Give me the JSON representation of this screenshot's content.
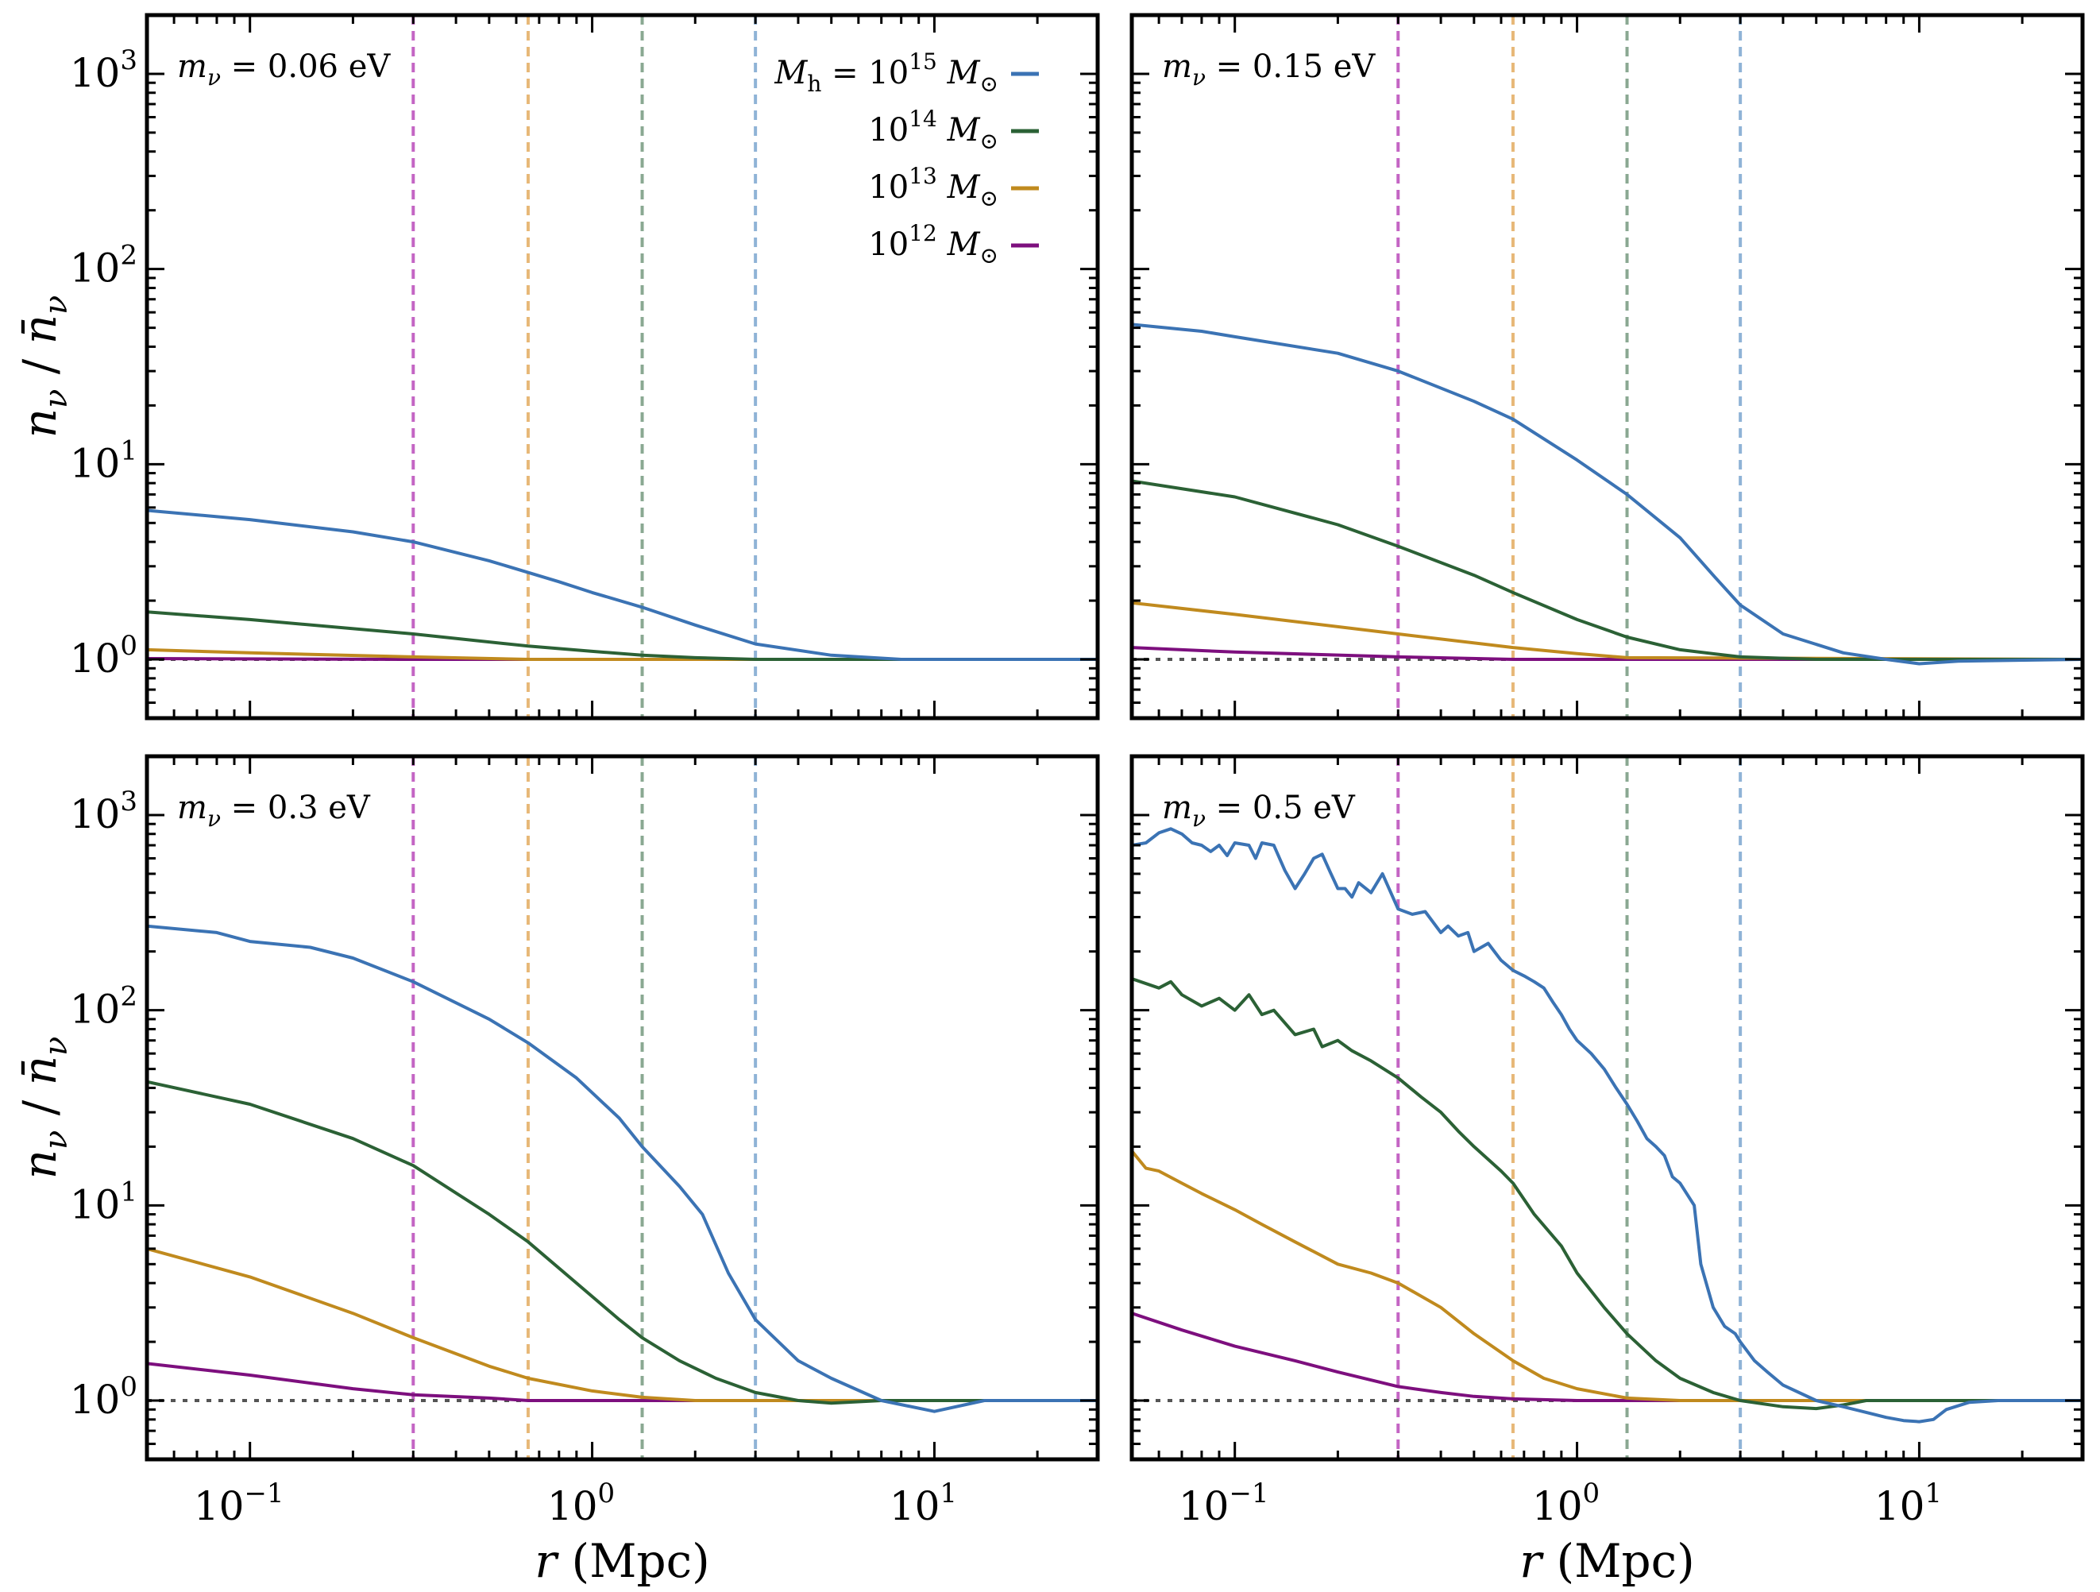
{
  "figure": {
    "ylabel": "n_ν / n̄_ν",
    "xlabel": "r (Mpc)"
  },
  "colors": {
    "m1e15": "#3b73b4",
    "m1e14": "#2b6135",
    "m1e13": "#c08a1e",
    "m1e12": "#7d0f7e",
    "vline_m1e15": "#8fb3d6",
    "vline_m1e14": "#8aa892",
    "vline_m1e13": "#e7b878",
    "vline_m1e12": "#c465c4",
    "reference": "#555555"
  },
  "legend": {
    "title": "M_h = ",
    "entries": [
      {
        "label": "10^15 M_⊙",
        "mantissa": "10",
        "exp": "15",
        "unit": "M",
        "sub": "⊙",
        "series": "m1e15"
      },
      {
        "label": "10^14 M_⊙",
        "mantissa": "10",
        "exp": "14",
        "unit": "M",
        "sub": "⊙",
        "series": "m1e14"
      },
      {
        "label": "10^13 M_⊙",
        "mantissa": "10",
        "exp": "13",
        "unit": "M",
        "sub": "⊙",
        "series": "m1e13"
      },
      {
        "label": "10^12 M_⊙",
        "mantissa": "10",
        "exp": "12",
        "unit": "M",
        "sub": "⊙",
        "series": "m1e12"
      }
    ]
  },
  "chart_data": [
    {
      "type": "line",
      "panel": "top-left",
      "label": "m_ν = 0.06 eV",
      "label_value": "0.06 eV",
      "xscale": "log",
      "yscale": "log",
      "xlim": [
        0.05,
        30
      ],
      "ylim": [
        0.5,
        2000
      ],
      "xticks": [
        "10^-1",
        "10^0",
        "10^1"
      ],
      "yticks": [
        "10^0",
        "10^1",
        "10^2",
        "10^3"
      ],
      "reference_line_y": 1,
      "vlines": [
        {
          "x": 0.3,
          "series": "m1e12"
        },
        {
          "x": 0.65,
          "series": "m1e13"
        },
        {
          "x": 1.4,
          "series": "m1e14"
        },
        {
          "x": 3.0,
          "series": "m1e15"
        }
      ],
      "series": [
        {
          "name": "m1e15",
          "x": [
            0.05,
            0.1,
            0.2,
            0.3,
            0.5,
            0.8,
            1.0,
            1.4,
            2,
            3,
            5,
            8,
            30
          ],
          "y": [
            5.8,
            5.2,
            4.5,
            4.0,
            3.2,
            2.5,
            2.2,
            1.85,
            1.5,
            1.2,
            1.05,
            1.0,
            1.0
          ]
        },
        {
          "name": "m1e14",
          "x": [
            0.05,
            0.1,
            0.3,
            0.65,
            1.0,
            1.4,
            2,
            3,
            30
          ],
          "y": [
            1.75,
            1.6,
            1.35,
            1.17,
            1.1,
            1.05,
            1.02,
            1.0,
            1.0
          ]
        },
        {
          "name": "m1e13",
          "x": [
            0.05,
            0.1,
            0.3,
            0.65,
            1.0,
            30
          ],
          "y": [
            1.12,
            1.08,
            1.03,
            1.0,
            1.0,
            1.0
          ]
        },
        {
          "name": "m1e12",
          "x": [
            0.05,
            0.3,
            30
          ],
          "y": [
            1.01,
            1.0,
            1.0
          ]
        }
      ]
    },
    {
      "type": "line",
      "panel": "top-right",
      "label": "m_ν = 0.15 eV",
      "label_value": "0.15 eV",
      "xscale": "log",
      "yscale": "log",
      "xlim": [
        0.05,
        30
      ],
      "ylim": [
        0.5,
        2000
      ],
      "xticks": [
        "10^-1",
        "10^0",
        "10^1"
      ],
      "yticks": [
        "10^0",
        "10^1",
        "10^2",
        "10^3"
      ],
      "reference_line_y": 1,
      "vlines": [
        {
          "x": 0.3,
          "series": "m1e12"
        },
        {
          "x": 0.65,
          "series": "m1e13"
        },
        {
          "x": 1.4,
          "series": "m1e14"
        },
        {
          "x": 3.0,
          "series": "m1e15"
        }
      ],
      "series": [
        {
          "name": "m1e15",
          "x": [
            0.05,
            0.08,
            0.1,
            0.2,
            0.3,
            0.5,
            0.65,
            1.0,
            1.4,
            2.0,
            2.5,
            3.0,
            4.0,
            6.0,
            8.0,
            10.0,
            13.0,
            30.0
          ],
          "y": [
            52,
            48,
            45,
            37,
            30,
            21,
            17,
            10.5,
            7,
            4.2,
            2.7,
            1.9,
            1.35,
            1.08,
            1.0,
            0.95,
            0.98,
            1.0
          ]
        },
        {
          "name": "m1e14",
          "x": [
            0.05,
            0.1,
            0.2,
            0.3,
            0.5,
            0.65,
            1.0,
            1.4,
            2.0,
            3.0,
            5.0,
            30.0
          ],
          "y": [
            8.2,
            6.8,
            4.9,
            3.8,
            2.7,
            2.2,
            1.6,
            1.3,
            1.12,
            1.03,
            1.0,
            1.0
          ]
        },
        {
          "name": "m1e13",
          "x": [
            0.05,
            0.1,
            0.3,
            0.65,
            1.0,
            1.4,
            30.0
          ],
          "y": [
            1.95,
            1.7,
            1.35,
            1.15,
            1.07,
            1.02,
            1.0
          ]
        },
        {
          "name": "m1e12",
          "x": [
            0.05,
            0.1,
            0.3,
            0.65,
            30.0
          ],
          "y": [
            1.15,
            1.09,
            1.03,
            1.0,
            1.0
          ]
        }
      ]
    },
    {
      "type": "line",
      "panel": "bottom-left",
      "label": "m_ν = 0.3 eV",
      "label_value": "0.3 eV",
      "xscale": "log",
      "yscale": "log",
      "xlim": [
        0.05,
        30
      ],
      "ylim": [
        0.5,
        2000
      ],
      "xticks": [
        "10^-1",
        "10^0",
        "10^1"
      ],
      "yticks": [
        "10^0",
        "10^1",
        "10^2",
        "10^3"
      ],
      "reference_line_y": 1,
      "vlines": [
        {
          "x": 0.3,
          "series": "m1e12"
        },
        {
          "x": 0.65,
          "series": "m1e13"
        },
        {
          "x": 1.4,
          "series": "m1e14"
        },
        {
          "x": 3.0,
          "series": "m1e15"
        }
      ],
      "series": [
        {
          "name": "m1e15",
          "x": [
            0.05,
            0.08,
            0.1,
            0.15,
            0.2,
            0.3,
            0.5,
            0.65,
            0.9,
            1.2,
            1.4,
            1.8,
            2.1,
            2.5,
            3.0,
            4.0,
            5.0,
            7.0,
            10.0,
            14.0,
            30.0
          ],
          "y": [
            270,
            250,
            225,
            210,
            185,
            140,
            90,
            68,
            45,
            28,
            20,
            12.5,
            9,
            4.5,
            2.6,
            1.6,
            1.3,
            1.0,
            0.88,
            1.0,
            1.0
          ]
        },
        {
          "name": "m1e14",
          "x": [
            0.05,
            0.1,
            0.2,
            0.3,
            0.5,
            0.65,
            0.9,
            1.2,
            1.4,
            1.8,
            2.3,
            3.0,
            4.0,
            5.0,
            7.0,
            30.0
          ],
          "y": [
            43,
            33,
            22,
            16,
            9,
            6.5,
            4.0,
            2.6,
            2.1,
            1.6,
            1.3,
            1.1,
            1.0,
            0.97,
            1.0,
            1.0
          ]
        },
        {
          "name": "m1e13",
          "x": [
            0.05,
            0.1,
            0.2,
            0.3,
            0.5,
            0.65,
            1.0,
            1.4,
            2.0,
            30.0
          ],
          "y": [
            6,
            4.3,
            2.8,
            2.1,
            1.5,
            1.3,
            1.12,
            1.04,
            1.0,
            1.0
          ]
        },
        {
          "name": "m1e12",
          "x": [
            0.05,
            0.1,
            0.2,
            0.3,
            0.5,
            0.65,
            30.0
          ],
          "y": [
            1.55,
            1.35,
            1.15,
            1.07,
            1.03,
            1.0,
            1.0
          ]
        }
      ]
    },
    {
      "type": "line",
      "panel": "bottom-right",
      "label": "m_ν = 0.5 eV",
      "label_value": "0.5 eV",
      "xscale": "log",
      "yscale": "log",
      "xlim": [
        0.05,
        30
      ],
      "ylim": [
        0.5,
        2000
      ],
      "xticks": [
        "10^-1",
        "10^0",
        "10^1"
      ],
      "yticks": [
        "10^0",
        "10^1",
        "10^2",
        "10^3"
      ],
      "reference_line_y": 1,
      "vlines": [
        {
          "x": 0.3,
          "series": "m1e12"
        },
        {
          "x": 0.65,
          "series": "m1e13"
        },
        {
          "x": 1.4,
          "series": "m1e14"
        },
        {
          "x": 3.0,
          "series": "m1e15"
        }
      ],
      "series": [
        {
          "name": "m1e15",
          "x": [
            0.05,
            0.055,
            0.06,
            0.065,
            0.07,
            0.075,
            0.08,
            0.085,
            0.09,
            0.095,
            0.1,
            0.11,
            0.115,
            0.12,
            0.13,
            0.14,
            0.15,
            0.16,
            0.17,
            0.18,
            0.19,
            0.2,
            0.21,
            0.22,
            0.23,
            0.25,
            0.27,
            0.3,
            0.33,
            0.36,
            0.4,
            0.42,
            0.45,
            0.48,
            0.5,
            0.55,
            0.6,
            0.65,
            0.7,
            0.75,
            0.8,
            0.85,
            0.9,
            0.95,
            1.0,
            1.1,
            1.2,
            1.3,
            1.4,
            1.5,
            1.6,
            1.7,
            1.8,
            1.9,
            2.0,
            2.2,
            2.3,
            2.5,
            2.7,
            2.9,
            3.0,
            3.3,
            3.6,
            4.0,
            5.0,
            6.0,
            7.0,
            8.0,
            9.0,
            10.0,
            11.0,
            12.0,
            14.0,
            17.0,
            30.0
          ],
          "y": [
            700,
            720,
            810,
            850,
            800,
            720,
            700,
            650,
            700,
            620,
            720,
            700,
            600,
            720,
            700,
            520,
            420,
            500,
            600,
            630,
            510,
            420,
            420,
            380,
            450,
            400,
            500,
            330,
            310,
            320,
            250,
            270,
            240,
            250,
            200,
            220,
            180,
            160,
            150,
            140,
            130,
            110,
            95,
            80,
            70,
            60,
            50,
            40,
            33,
            27,
            22,
            20,
            18,
            14,
            13,
            10,
            5.0,
            3.0,
            2.4,
            2.2,
            2.0,
            1.6,
            1.4,
            1.2,
            1.0,
            0.93,
            0.87,
            0.82,
            0.79,
            0.78,
            0.8,
            0.9,
            0.98,
            1.0,
            1.0
          ]
        },
        {
          "name": "m1e14",
          "x": [
            0.05,
            0.06,
            0.065,
            0.07,
            0.08,
            0.09,
            0.1,
            0.11,
            0.12,
            0.13,
            0.15,
            0.17,
            0.18,
            0.2,
            0.22,
            0.25,
            0.3,
            0.35,
            0.4,
            0.45,
            0.5,
            0.6,
            0.65,
            0.75,
            0.9,
            1.0,
            1.2,
            1.4,
            1.7,
            2.0,
            2.5,
            3.0,
            4.0,
            5.0,
            6.0,
            7.0,
            30.0
          ],
          "y": [
            145,
            130,
            140,
            120,
            105,
            115,
            100,
            120,
            95,
            100,
            75,
            80,
            65,
            70,
            62,
            55,
            45,
            36,
            30,
            24,
            20,
            15,
            13,
            9,
            6.2,
            4.5,
            3.0,
            2.2,
            1.6,
            1.3,
            1.1,
            1.0,
            0.93,
            0.91,
            0.95,
            1.0,
            1.0
          ]
        },
        {
          "name": "m1e13",
          "x": [
            0.05,
            0.055,
            0.06,
            0.07,
            0.08,
            0.1,
            0.12,
            0.15,
            0.2,
            0.25,
            0.3,
            0.4,
            0.5,
            0.65,
            0.8,
            1.0,
            1.4,
            2.0,
            3.0,
            30.0
          ],
          "y": [
            19,
            15.5,
            15,
            13,
            11.5,
            9.5,
            8,
            6.5,
            5.0,
            4.5,
            4.0,
            3.0,
            2.2,
            1.6,
            1.3,
            1.15,
            1.03,
            1.0,
            1.0,
            1.0
          ]
        },
        {
          "name": "m1e12",
          "x": [
            0.05,
            0.07,
            0.1,
            0.15,
            0.2,
            0.3,
            0.4,
            0.5,
            0.65,
            1.0,
            30.0
          ],
          "y": [
            2.8,
            2.3,
            1.9,
            1.6,
            1.4,
            1.18,
            1.1,
            1.05,
            1.02,
            1.0,
            1.0
          ]
        }
      ]
    }
  ]
}
